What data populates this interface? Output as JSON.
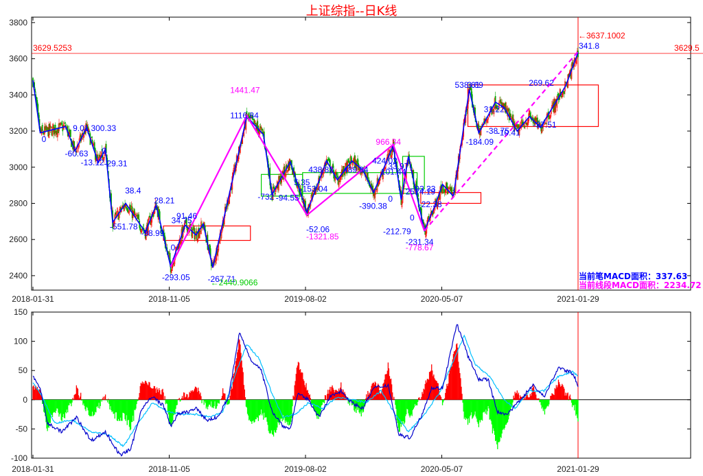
{
  "title": "上证综指--日K线",
  "legend": {
    "bi_label": "当前笔MACD面积：",
    "bi_value": "337.63",
    "seg_label": "当前线段MACD面积：",
    "seg_value": "2234.72"
  },
  "colors": {
    "up": "#ff0000",
    "down": "#00aa00",
    "bi": "#0000ff",
    "segment": "#ff00ff",
    "center_bi": "#00cc00",
    "center_seg": "#ff0000",
    "dif": "#0000cc",
    "dea": "#00bfff",
    "hist_pos": "#ff0000",
    "hist_neg": "#00ff00"
  },
  "chart_data": [
    {
      "type": "candlestick",
      "title": "上证综指--日K线",
      "x_ticks": [
        {
          "i": 0,
          "label": "2018-01-31"
        },
        {
          "i": 188,
          "label": "2018-11-05"
        },
        {
          "i": 376,
          "label": "2019-08-02"
        },
        {
          "i": 564,
          "label": "2020-05-07"
        },
        {
          "i": 752,
          "label": "2021-01-29"
        }
      ],
      "n_bars": 753,
      "ylim": [
        2320,
        3830
      ],
      "y_ticks": [
        2400,
        2600,
        2800,
        3000,
        3200,
        3400,
        3600,
        3800
      ],
      "ref_line": {
        "value": 3629.5253,
        "label_left": "3629.5253",
        "label_right": "3629.5"
      },
      "vline_index": 752,
      "high_label": "←3637.1002",
      "low_label": "←2440.9066",
      "bi_points": [
        [
          0,
          3480
        ],
        [
          10,
          3190
        ],
        [
          45,
          3225
        ],
        [
          58,
          3090
        ],
        [
          74,
          3220
        ],
        [
          90,
          3025
        ],
        [
          100,
          3100
        ],
        [
          110,
          2695
        ],
        [
          128,
          2800
        ],
        [
          155,
          2640
        ],
        [
          170,
          2790
        ],
        [
          190,
          2450
        ],
        [
          210,
          2680
        ],
        [
          225,
          2625
        ],
        [
          235,
          2685
        ],
        [
          248,
          2445
        ],
        [
          295,
          3280
        ],
        [
          318,
          3180
        ],
        [
          330,
          2850
        ],
        [
          355,
          3030
        ],
        [
          378,
          2750
        ],
        [
          405,
          3035
        ],
        [
          420,
          2930
        ],
        [
          440,
          3035
        ],
        [
          455,
          2985
        ],
        [
          470,
          2860
        ],
        [
          497,
          3120
        ],
        [
          508,
          2820
        ],
        [
          518,
          3060
        ],
        [
          533,
          2780
        ],
        [
          540,
          2650
        ],
        [
          555,
          2790
        ],
        [
          565,
          2905
        ],
        [
          580,
          2840
        ],
        [
          602,
          3430
        ],
        [
          615,
          3190
        ],
        [
          638,
          3360
        ],
        [
          650,
          3330
        ],
        [
          668,
          3200
        ],
        [
          685,
          3280
        ],
        [
          700,
          3220
        ],
        [
          735,
          3450
        ],
        [
          752,
          3635
        ]
      ],
      "segment_points": [
        [
          190,
          2450
        ],
        [
          295,
          3285
        ],
        [
          378,
          2735
        ],
        [
          497,
          3125
        ],
        [
          540,
          2648
        ]
      ],
      "segment_dashed": [
        [
          540,
          2648
        ],
        [
          752,
          3640
        ]
      ],
      "pivots_bi": [
        {
          "x0": 315,
          "x1": 372,
          "y0": 2840,
          "y1": 2960
        },
        {
          "x0": 372,
          "x1": 530,
          "y0": 2855,
          "y1": 2970
        },
        {
          "x0": 510,
          "x1": 540,
          "y0": 2880,
          "y1": 3060
        }
      ],
      "pivots_seg": [
        {
          "x0": 180,
          "x1": 300,
          "y0": 2595,
          "y1": 2675
        },
        {
          "x0": 600,
          "x1": 780,
          "y0": 3225,
          "y1": 3455
        },
        {
          "x0": 535,
          "x1": 618,
          "y0": 2800,
          "y1": 2860
        }
      ],
      "annotations_bi": [
        {
          "i": 12,
          "v": 3140,
          "text": "0"
        },
        {
          "i": 55,
          "v": 3200,
          "text": "9.01"
        },
        {
          "i": 80,
          "v": 3200,
          "text": "300.33"
        },
        {
          "i": 44,
          "v": 3060,
          "text": "-60.63"
        },
        {
          "i": 66,
          "v": 3010,
          "text": "-13.12"
        },
        {
          "i": 98,
          "v": 3005,
          "text": "-29.31"
        },
        {
          "i": 95,
          "v": 3075,
          "text": "0"
        },
        {
          "i": 127,
          "v": 2855,
          "text": "38.4"
        },
        {
          "i": 106,
          "v": 2655,
          "text": "-551.78"
        },
        {
          "i": 167,
          "v": 2800,
          "text": "28.21"
        },
        {
          "i": 149,
          "v": 2620,
          "text": "-98.99"
        },
        {
          "i": 191,
          "v": 2690,
          "text": "34.75"
        },
        {
          "i": 198,
          "v": 2715,
          "text": "91.46"
        },
        {
          "i": 190,
          "v": 2540,
          "text": "0"
        },
        {
          "i": 178,
          "v": 2375,
          "text": "-293.05"
        },
        {
          "i": 241,
          "v": 2365,
          "text": "-267.71"
        },
        {
          "i": 272,
          "v": 3270,
          "text": "1116.84"
        },
        {
          "i": 310,
          "v": 2820,
          "text": "-732"
        },
        {
          "i": 335,
          "v": 2815,
          "text": "-94.55"
        },
        {
          "i": 380,
          "v": 2970,
          "text": "438.82"
        },
        {
          "i": 360,
          "v": 2900,
          "text": "5.35"
        },
        {
          "i": 368,
          "v": 2865,
          "text": "-153.04"
        },
        {
          "i": 428,
          "v": 2970,
          "text": "489.94"
        },
        {
          "i": 468,
          "v": 3020,
          "text": "424.02"
        },
        {
          "i": 480,
          "v": 2960,
          "text": "101.44"
        },
        {
          "i": 490,
          "v": 2990,
          "text": "33.97"
        },
        {
          "i": 377,
          "v": 2640,
          "text": "-52.06"
        },
        {
          "i": 450,
          "v": 2770,
          "text": "-390.38"
        },
        {
          "i": 490,
          "v": 2810,
          "text": "0"
        },
        {
          "i": 514,
          "v": 2850,
          "text": "2514.19"
        },
        {
          "i": 527,
          "v": 2865,
          "text": "93.33"
        },
        {
          "i": 483,
          "v": 2630,
          "text": "-212.79"
        },
        {
          "i": 520,
          "v": 2705,
          "text": "0"
        },
        {
          "i": 532,
          "v": 2780,
          "text": "-22.38"
        },
        {
          "i": 514,
          "v": 2570,
          "text": "-231.34"
        },
        {
          "i": 582,
          "v": 3440,
          "text": "538.61"
        },
        {
          "i": 599,
          "v": 3440,
          "text": "3.69"
        },
        {
          "i": 622,
          "v": 3305,
          "text": "31.22"
        },
        {
          "i": 684,
          "v": 3450,
          "text": "269.62"
        },
        {
          "i": 597,
          "v": 3125,
          "text": "-184.09"
        },
        {
          "i": 625,
          "v": 3185,
          "text": "-38.75"
        },
        {
          "i": 640,
          "v": 3175,
          "text": "-10.41"
        },
        {
          "i": 690,
          "v": 3220,
          "text": "-37.51"
        },
        {
          "i": 753,
          "v": 3655,
          "text": "341.8"
        }
      ],
      "annotations_seg": [
        {
          "i": 272,
          "v": 3410,
          "text": "1441.47"
        },
        {
          "i": 473,
          "v": 3125,
          "text": "966.34"
        },
        {
          "i": 377,
          "v": 2600,
          "text": "-1321.85"
        },
        {
          "i": 514,
          "v": 2540,
          "text": "-778.67"
        }
      ]
    },
    {
      "type": "macd",
      "ylim": [
        -100,
        150
      ],
      "y_ticks": [
        -100,
        -50,
        0,
        50,
        100,
        150
      ],
      "dif_key": [
        [
          0,
          40
        ],
        [
          10,
          20
        ],
        [
          20,
          -40
        ],
        [
          40,
          -55
        ],
        [
          60,
          -30
        ],
        [
          80,
          -70
        ],
        [
          100,
          -55
        ],
        [
          120,
          -95
        ],
        [
          135,
          -85
        ],
        [
          150,
          -15
        ],
        [
          165,
          5
        ],
        [
          180,
          -10
        ],
        [
          190,
          -45
        ],
        [
          200,
          -25
        ],
        [
          215,
          -20
        ],
        [
          225,
          -15
        ],
        [
          240,
          -35
        ],
        [
          255,
          -30
        ],
        [
          270,
          5
        ],
        [
          285,
          115
        ],
        [
          300,
          70
        ],
        [
          315,
          50
        ],
        [
          330,
          -20
        ],
        [
          345,
          -45
        ],
        [
          355,
          -50
        ],
        [
          365,
          10
        ],
        [
          380,
          0
        ],
        [
          395,
          -30
        ],
        [
          410,
          5
        ],
        [
          425,
          15
        ],
        [
          440,
          -5
        ],
        [
          455,
          -15
        ],
        [
          470,
          20
        ],
        [
          490,
          25
        ],
        [
          505,
          -60
        ],
        [
          520,
          -65
        ],
        [
          535,
          -30
        ],
        [
          550,
          20
        ],
        [
          565,
          20
        ],
        [
          585,
          130
        ],
        [
          600,
          75
        ],
        [
          615,
          35
        ],
        [
          628,
          35
        ],
        [
          640,
          -20
        ],
        [
          655,
          -25
        ],
        [
          672,
          0
        ],
        [
          690,
          25
        ],
        [
          705,
          5
        ],
        [
          725,
          55
        ],
        [
          735,
          50
        ],
        [
          745,
          45
        ],
        [
          752,
          25
        ]
      ],
      "dea_key": [
        [
          0,
          30
        ],
        [
          15,
          0
        ],
        [
          30,
          -40
        ],
        [
          55,
          -35
        ],
        [
          80,
          -55
        ],
        [
          105,
          -60
        ],
        [
          125,
          -80
        ],
        [
          145,
          -40
        ],
        [
          165,
          -5
        ],
        [
          185,
          -20
        ],
        [
          205,
          -25
        ],
        [
          225,
          -25
        ],
        [
          245,
          -30
        ],
        [
          262,
          -20
        ],
        [
          278,
          40
        ],
        [
          295,
          95
        ],
        [
          312,
          70
        ],
        [
          330,
          10
        ],
        [
          345,
          -30
        ],
        [
          362,
          -25
        ],
        [
          380,
          -5
        ],
        [
          400,
          -15
        ],
        [
          420,
          5
        ],
        [
          440,
          0
        ],
        [
          460,
          -5
        ],
        [
          480,
          15
        ],
        [
          500,
          -25
        ],
        [
          518,
          -55
        ],
        [
          540,
          -25
        ],
        [
          560,
          10
        ],
        [
          578,
          60
        ],
        [
          595,
          110
        ],
        [
          610,
          60
        ],
        [
          630,
          40
        ],
        [
          650,
          0
        ],
        [
          665,
          -15
        ],
        [
          685,
          15
        ],
        [
          705,
          15
        ],
        [
          725,
          40
        ],
        [
          745,
          48
        ],
        [
          752,
          40
        ]
      ]
    }
  ]
}
